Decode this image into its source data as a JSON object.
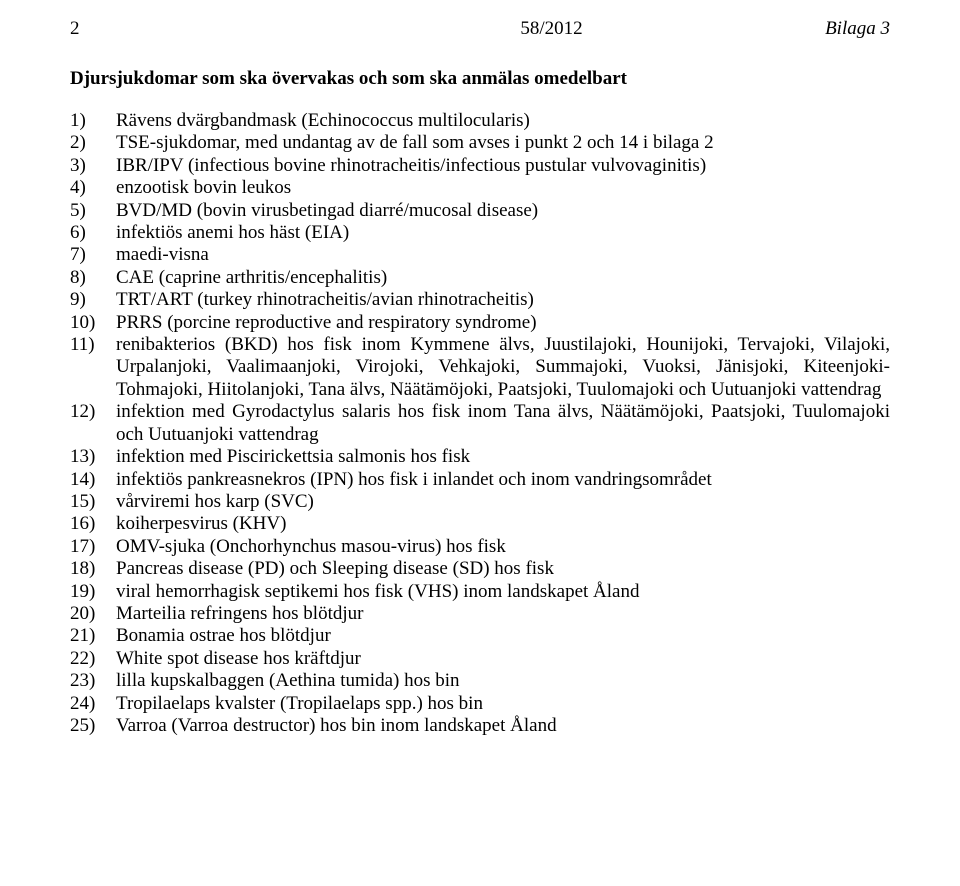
{
  "header": {
    "page_number": "2",
    "doc_ref": "58/2012",
    "annex": "Bilaga 3"
  },
  "title": "Djursjukdomar som ska övervakas och som ska anmälas omedelbart",
  "items": [
    {
      "n": "1)",
      "t": "Rävens dvärgbandmask (Echinococcus multilocularis)"
    },
    {
      "n": "2)",
      "t": "TSE-sjukdomar, med undantag av de fall som avses i punkt 2 och 14 i bilaga 2"
    },
    {
      "n": "3)",
      "t": "IBR/IPV (infectious bovine rhinotracheitis/infectious pustular vulvovaginitis)"
    },
    {
      "n": "4)",
      "t": "enzootisk bovin leukos"
    },
    {
      "n": "5)",
      "t": "BVD/MD (bovin virusbetingad diarré/mucosal disease)"
    },
    {
      "n": "6)",
      "t": "infektiös anemi hos häst (EIA)"
    },
    {
      "n": "7)",
      "t": "maedi-visna"
    },
    {
      "n": "8)",
      "t": "CAE (caprine arthritis/encephalitis)"
    },
    {
      "n": "9)",
      "t": "TRT/ART (turkey rhinotracheitis/avian rhinotracheitis)"
    },
    {
      "n": "10)",
      "t": "PRRS (porcine reproductive and respiratory syndrome)"
    },
    {
      "n": "11)",
      "t": "renibakterios (BKD) hos fisk inom Kymmene älvs, Juustilajoki, Hounijoki, Tervajoki, Vilajoki, Urpalanjoki, Vaalimaanjoki, Virojoki, Vehkajoki, Summajoki, Vuoksi, Jänisjoki, Kiteenjoki-Tohmajoki, Hiitolanjoki, Tana älvs, Näätämöjoki, Paatsjoki, Tuulomajoki och Uutuanjoki vattendrag"
    },
    {
      "n": "12)",
      "t": " infektion med Gyrodactylus salaris hos fisk inom Tana älvs, Näätämöjoki, Paatsjoki, Tuulomajoki och Uutuanjoki vattendrag"
    },
    {
      "n": "13)",
      "t": "infektion med Piscirickettsia salmonis hos fisk"
    },
    {
      "n": "14)",
      "t": "infektiös pankreasnekros (IPN) hos fisk i inlandet och inom vandringsområdet"
    },
    {
      "n": "15)",
      "t": "vårviremi hos karp (SVC)"
    },
    {
      "n": "16)",
      "t": "koiherpesvirus (KHV)"
    },
    {
      "n": "17)",
      "t": "OMV-sjuka (Onchorhynchus masou-virus) hos fisk"
    },
    {
      "n": "18)",
      "t": "Pancreas disease (PD) och Sleeping disease (SD) hos fisk"
    },
    {
      "n": "19)",
      "t": "viral hemorrhagisk septikemi hos fisk (VHS) inom landskapet Åland"
    },
    {
      "n": "20)",
      "t": "Marteilia refringens hos blötdjur"
    },
    {
      "n": "21)",
      "t": "Bonamia ostrae hos blötdjur"
    },
    {
      "n": "22)",
      "t": "White spot disease hos kräftdjur"
    },
    {
      "n": "23)",
      "t": "lilla kupskalbaggen (Aethina tumida) hos bin"
    },
    {
      "n": "24)",
      "t": "Tropilaelaps kvalster (Tropilaelaps spp.) hos bin"
    },
    {
      "n": "25)",
      "t": "Varroa (Varroa destructor) hos bin inom landskapet Åland"
    }
  ],
  "style": {
    "font_family": "Times New Roman",
    "font_size_pt": 14,
    "background": "#ffffff",
    "text_color": "#000000"
  }
}
